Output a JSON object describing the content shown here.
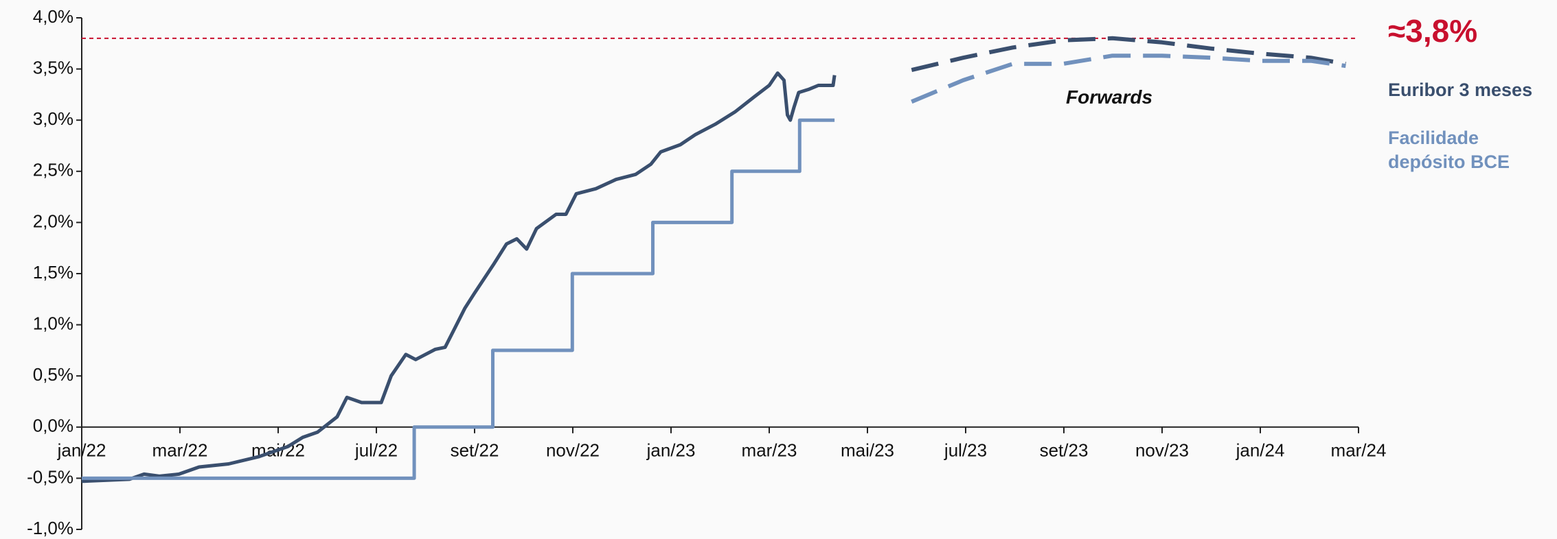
{
  "chart_data": {
    "type": "line",
    "xlim": [
      0,
      26
    ],
    "xticks": [
      {
        "value": 0,
        "label": "jan/22"
      },
      {
        "value": 2,
        "label": "mar/22"
      },
      {
        "value": 4,
        "label": "mai/22"
      },
      {
        "value": 6,
        "label": "jul/22"
      },
      {
        "value": 8,
        "label": "set/22"
      },
      {
        "value": 10,
        "label": "nov/22"
      },
      {
        "value": 12,
        "label": "jan/23"
      },
      {
        "value": 14,
        "label": "mar/23"
      },
      {
        "value": 16,
        "label": "mai/23"
      },
      {
        "value": 18,
        "label": "jul/23"
      },
      {
        "value": 20,
        "label": "set/23"
      },
      {
        "value": 22,
        "label": "nov/23"
      },
      {
        "value": 24,
        "label": "jan/24"
      },
      {
        "value": 26,
        "label": "mar/24"
      }
    ],
    "ylim": [
      -1.0,
      4.0
    ],
    "yticks": [
      {
        "value": -1.0,
        "label": "-1,0%"
      },
      {
        "value": -0.5,
        "label": "-0,5%"
      },
      {
        "value": 0,
        "label": "0,0%"
      },
      {
        "value": 0.5,
        "label": "0,5%"
      },
      {
        "value": 1.0,
        "label": "1,0%"
      },
      {
        "value": 1.5,
        "label": "1,5%"
      },
      {
        "value": 2.0,
        "label": "2,0%"
      },
      {
        "value": 2.5,
        "label": "2,5%"
      },
      {
        "value": 3.0,
        "label": "3,0%"
      },
      {
        "value": 3.5,
        "label": "3,5%"
      },
      {
        "value": 4.0,
        "label": "4,0%"
      }
    ],
    "grid": false,
    "series": [
      {
        "name": "Euribor 3 meses",
        "color": "#3a4f6e",
        "dashed": false,
        "x": [
          0,
          0.97,
          1.27,
          1.58,
          1.98,
          2.39,
          2.99,
          3.6,
          4.2,
          4.5,
          4.8,
          5.2,
          5.4,
          5.7,
          6.1,
          6.3,
          6.6,
          6.8,
          7.2,
          7.4,
          7.6,
          7.8,
          8.0,
          8.4,
          8.65,
          8.86,
          9.06,
          9.26,
          9.66,
          9.86,
          10.07,
          10.47,
          10.88,
          11.28,
          11.59,
          11.79,
          12.19,
          12.5,
          12.9,
          13.3,
          13.7,
          14.0,
          14.17,
          14.3,
          14.37,
          14.43,
          14.5,
          14.6,
          14.8,
          15.0,
          15.3,
          15.33
        ],
        "values": [
          -0.53,
          -0.51,
          -0.46,
          -0.48,
          -0.46,
          -0.39,
          -0.36,
          -0.29,
          -0.19,
          -0.1,
          -0.05,
          0.1,
          0.29,
          0.24,
          0.24,
          0.5,
          0.71,
          0.66,
          0.76,
          0.78,
          0.97,
          1.16,
          1.31,
          1.6,
          1.79,
          1.84,
          1.74,
          1.94,
          2.08,
          2.08,
          2.28,
          2.33,
          2.42,
          2.47,
          2.57,
          2.69,
          2.76,
          2.86,
          2.96,
          3.08,
          3.23,
          3.34,
          3.46,
          3.39,
          3.05,
          3.0,
          3.12,
          3.27,
          3.3,
          3.34,
          3.34,
          3.44
        ]
      },
      {
        "name": "Facilidade depósito BCE",
        "color": "#7191bd",
        "dashed": false,
        "x": [
          0,
          6.77,
          6.77,
          8.37,
          8.37,
          9.99,
          9.99,
          11.63,
          11.63,
          13.24,
          13.24,
          14.62,
          14.62,
          15.33
        ],
        "values": [
          -0.5,
          -0.5,
          0,
          0,
          0.75,
          0.75,
          1.5,
          1.5,
          2.0,
          2.0,
          2.5,
          2.5,
          3.0,
          3.0
        ]
      },
      {
        "color": "#3a4f6e",
        "dashed": true,
        "x": [
          16.9,
          17.95,
          18.96,
          19.98,
          20.99,
          22.0,
          23.0,
          24.0,
          25.03,
          25.74
        ],
        "values": [
          3.49,
          3.61,
          3.71,
          3.78,
          3.8,
          3.76,
          3.7,
          3.65,
          3.61,
          3.55
        ]
      },
      {
        "color": "#7191bd",
        "dashed": true,
        "x": [
          16.9,
          17.95,
          18.96,
          19.98,
          20.99,
          22.0,
          23.0,
          24.0,
          25.03,
          25.74
        ],
        "values": [
          3.18,
          3.39,
          3.55,
          3.55,
          3.63,
          3.63,
          3.61,
          3.58,
          3.58,
          3.53
        ]
      }
    ],
    "reference_line": {
      "value": 3.8,
      "color": "#c8102e",
      "label": "≈3,8%"
    },
    "annotation": "Forwards"
  }
}
